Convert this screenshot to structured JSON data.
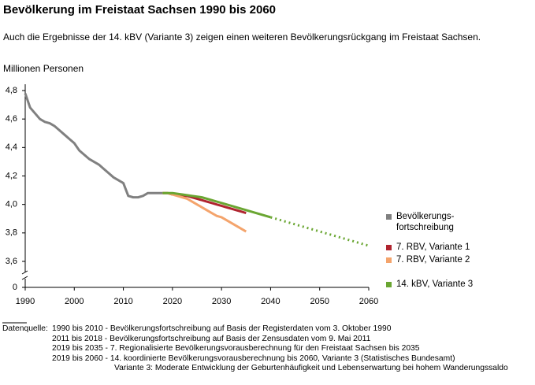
{
  "chart_data": {
    "type": "line",
    "title": "Bevölkerung im Freistaat Sachsen 1990 bis 2060",
    "subtitle": "Auch die Ergebnisse der 14. kBV (Variante 3) zeigen einen weiteren Bevölkerungsrückgang im Freistaat Sachsen.",
    "y_label": "Millionen Personen",
    "xlim": [
      1990,
      2060
    ],
    "xticks": [
      1990,
      2000,
      2010,
      2020,
      2030,
      2040,
      2050,
      2060
    ],
    "ylim": [
      3.6,
      4.8
    ],
    "yticks": [
      0,
      {
        "value": 3.6,
        "label": "3,6"
      },
      {
        "value": 3.8,
        "label": "3,8"
      },
      {
        "value": 4.0,
        "label": "4,0"
      },
      {
        "value": 4.2,
        "label": "4,2"
      },
      {
        "value": 4.4,
        "label": "4,4"
      },
      {
        "value": 4.6,
        "label": "4,6"
      },
      {
        "value": 4.8,
        "label": "4,8"
      }
    ],
    "axis_break": true,
    "series": [
      {
        "name": "Bevölkerungs-\nfortschreibung",
        "color": "#808080",
        "x": [
          1990,
          1991,
          1992,
          1993,
          1994,
          1995,
          1996,
          1997,
          1998,
          1999,
          2000,
          2001,
          2002,
          2003,
          2004,
          2005,
          2006,
          2007,
          2008,
          2009,
          2010,
          2011,
          2012,
          2013,
          2014,
          2015,
          2016,
          2017,
          2018
        ],
        "values": [
          4.78,
          4.68,
          4.64,
          4.6,
          4.58,
          4.57,
          4.55,
          4.52,
          4.49,
          4.46,
          4.43,
          4.38,
          4.35,
          4.32,
          4.3,
          4.28,
          4.25,
          4.22,
          4.19,
          4.17,
          4.15,
          4.06,
          4.05,
          4.05,
          4.06,
          4.08,
          4.08,
          4.08,
          4.08
        ]
      },
      {
        "name": "7. RBV, Variante 1",
        "color": "#b0242f",
        "x": [
          2018,
          2019,
          2020,
          2021,
          2022,
          2023,
          2024,
          2025,
          2026,
          2027,
          2028,
          2029,
          2030,
          2031,
          2032,
          2033,
          2034,
          2035
        ],
        "values": [
          4.08,
          4.08,
          4.07,
          4.07,
          4.06,
          4.06,
          4.05,
          4.04,
          4.03,
          4.02,
          4.01,
          4.0,
          3.99,
          3.98,
          3.97,
          3.96,
          3.95,
          3.94
        ]
      },
      {
        "name": "7. RBV, Variante 2",
        "color": "#f4a46c",
        "x": [
          2018,
          2019,
          2020,
          2021,
          2022,
          2023,
          2024,
          2025,
          2026,
          2027,
          2028,
          2029,
          2030,
          2031,
          2032,
          2033,
          2034,
          2035
        ],
        "values": [
          4.08,
          4.08,
          4.07,
          4.06,
          4.05,
          4.04,
          4.02,
          4.0,
          3.98,
          3.96,
          3.94,
          3.92,
          3.91,
          3.89,
          3.87,
          3.85,
          3.83,
          3.81
        ]
      },
      {
        "name": "14. kBV, Variante 3",
        "color": "#6aa632",
        "dotted_from": 2040,
        "x": [
          2018,
          2020,
          2022,
          2024,
          2026,
          2028,
          2030,
          2032,
          2034,
          2036,
          2038,
          2040,
          2045,
          2050,
          2055,
          2060
        ],
        "values": [
          4.08,
          4.08,
          4.07,
          4.06,
          4.05,
          4.03,
          4.01,
          3.99,
          3.97,
          3.95,
          3.93,
          3.91,
          3.86,
          3.81,
          3.76,
          3.71
        ]
      }
    ],
    "source_label": "Datenquelle:",
    "notes": [
      "1990 bis 2010 - Bevölkerungsfortschreibung auf Basis der Registerdaten vom 3. Oktober 1990",
      "2011 bis 2018 - Bevölkerungsfortschreibung auf Basis der Zensusdaten vom 9. Mai 2011",
      "2019 bis 2035 - 7. Regionalisierte Bevölkerungsvorausberechnung für den Freistaat Sachsen bis 2035",
      "2019 bis 2060 - 14. koordinierte Bevölkerungsvorausberechnung bis 2060, Variante 3 (Statistisches Bundesamt)",
      "Variante 3: Moderate Entwicklung der Geburtenhäufigkeit und Lebenserwartung bei hohem Wanderungssaldo"
    ]
  }
}
